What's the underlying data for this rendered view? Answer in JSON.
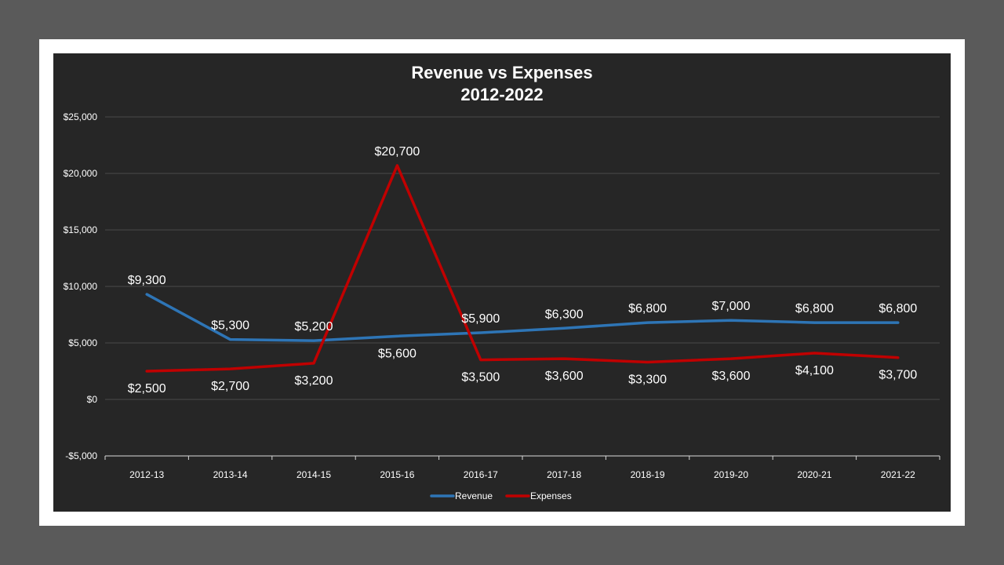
{
  "chart_data": {
    "type": "line",
    "title": [
      "Revenue vs Expenses",
      "2012-2022"
    ],
    "categories": [
      "2012-13",
      "2013-14",
      "2014-15",
      "2015-16",
      "2016-17",
      "2017-18",
      "2018-19",
      "2019-20",
      "2020-21",
      "2021-22"
    ],
    "series": [
      {
        "name": "Revenue",
        "color": "#2e75b6",
        "values": [
          9300,
          5300,
          5200,
          5600,
          5900,
          6300,
          6800,
          7000,
          6800,
          6800
        ],
        "labels": [
          "$9,300",
          "$5,300",
          "$5,200",
          "$5,600",
          "$5,900",
          "$6,300",
          "$6,800",
          "$7,000",
          "$6,800",
          "$6,800"
        ]
      },
      {
        "name": "Expenses",
        "color": "#c00000",
        "values": [
          2500,
          2700,
          3200,
          20700,
          3500,
          3600,
          3300,
          3600,
          4100,
          3700
        ],
        "labels": [
          "$2,500",
          "$2,700",
          "$3,200",
          "$20,700",
          "$3,500",
          "$3,600",
          "$3,300",
          "$3,600",
          "$4,100",
          "$3,700"
        ]
      }
    ],
    "ylim": [
      -5000,
      25000
    ],
    "yticks": [
      25000,
      20000,
      15000,
      10000,
      5000,
      0,
      -5000
    ],
    "ytick_labels": [
      "$25,000",
      "$20,000",
      "$15,000",
      "$10,000",
      "$5,000",
      "$0",
      "-$5,000"
    ],
    "xlabel": "",
    "ylabel": "",
    "grid": true,
    "legend": "bottom"
  }
}
